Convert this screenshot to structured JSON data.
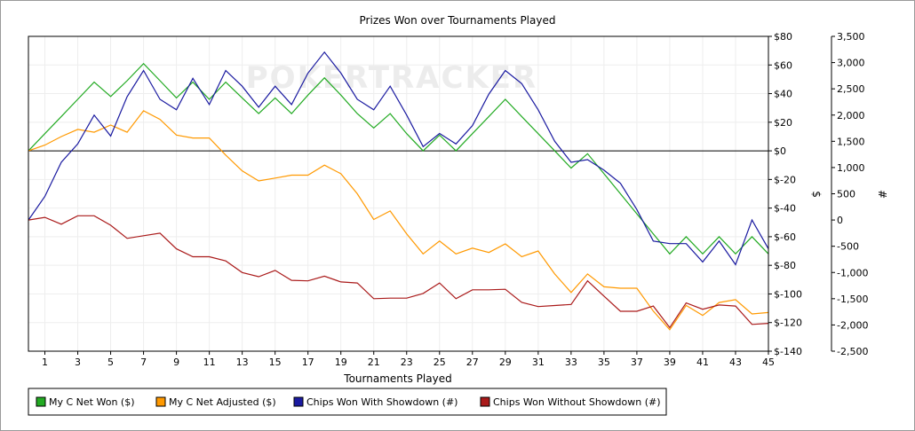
{
  "chart_data": {
    "type": "line",
    "title": "Prizes Won over Tournaments Played",
    "xlabel": "Tournaments Played",
    "ylabel_left": "$",
    "ylabel_right": "#",
    "watermark": "POKERTRACKER",
    "x": [
      0,
      1,
      2,
      3,
      4,
      5,
      6,
      7,
      8,
      9,
      10,
      11,
      12,
      13,
      14,
      15,
      16,
      17,
      18,
      19,
      20,
      21,
      22,
      23,
      24,
      25,
      26,
      27,
      28,
      29,
      30,
      31,
      32,
      33,
      34,
      35,
      36,
      37,
      38,
      39,
      40,
      41,
      42,
      43,
      44,
      45
    ],
    "x_ticks": [
      "1",
      "3",
      "5",
      "7",
      "9",
      "11",
      "13",
      "15",
      "17",
      "19",
      "21",
      "23",
      "25",
      "27",
      "29",
      "31",
      "33",
      "35",
      "37",
      "39",
      "41",
      "43",
      "45"
    ],
    "ylim_left": [
      -140,
      80
    ],
    "yticks_left": [
      "$80",
      "$60",
      "$40",
      "$20",
      "$0",
      "$-20",
      "$-40",
      "$-60",
      "$-80",
      "$-100",
      "$-120",
      "$-140"
    ],
    "ylim_right": [
      -2500,
      3500
    ],
    "yticks_right": [
      "3,500",
      "3,000",
      "2,500",
      "2,000",
      "1,500",
      "1,000",
      "500",
      "0",
      "-500",
      "-1,000",
      "-1,500",
      "-2,000",
      "-2,500"
    ],
    "grid": true,
    "legend_position": "bottom",
    "series": [
      {
        "name": "My C Net Won ($)",
        "axis": "left",
        "color": "#22aa22",
        "values": [
          0,
          12,
          24,
          36,
          48,
          38,
          49,
          61,
          49,
          37,
          48,
          36,
          48,
          37,
          26,
          37,
          26,
          39,
          51,
          39,
          26,
          16,
          26,
          12,
          0,
          11,
          0,
          12,
          24,
          36,
          24,
          12,
          0,
          -12,
          -2,
          -16,
          -30,
          -44,
          -58,
          -72,
          -60,
          -72,
          -60,
          -72,
          -60,
          -72
        ]
      },
      {
        "name": "My C Net Adjusted ($)",
        "axis": "left",
        "color": "#ff9900",
        "values": [
          0,
          4,
          10,
          15,
          13,
          18,
          13,
          28,
          22,
          11,
          9,
          9,
          -3,
          -14,
          -21,
          -19,
          -17,
          -17,
          -10,
          -16,
          -30,
          -48,
          -42,
          -58,
          -72,
          -63,
          -72,
          -68,
          -71,
          -65,
          -74,
          -70,
          -86,
          -99,
          -86,
          -95,
          -96,
          -96,
          -112,
          -125,
          -108,
          -115,
          -106,
          -104,
          -114,
          -113
        ]
      },
      {
        "name": "Chips Won With Showdown (#)",
        "axis": "right",
        "color": "#1a1aa0",
        "values": [
          0,
          450,
          1100,
          1450,
          2000,
          1600,
          2350,
          2850,
          2300,
          2100,
          2700,
          2200,
          2850,
          2550,
          2150,
          2550,
          2200,
          2800,
          3200,
          2800,
          2300,
          2100,
          2550,
          2000,
          1400,
          1650,
          1450,
          1800,
          2400,
          2850,
          2600,
          2100,
          1500,
          1100,
          1150,
          950,
          700,
          200,
          -400,
          -450,
          -450,
          -800,
          -400,
          -850,
          0,
          -550
        ]
      },
      {
        "name": "Chips Won Without Showdown (#)",
        "axis": "right",
        "color": "#aa1a1a",
        "values": [
          0,
          50,
          -80,
          80,
          80,
          -100,
          -350,
          -300,
          -250,
          -550,
          -700,
          -700,
          -780,
          -1000,
          -1080,
          -960,
          -1150,
          -1160,
          -1070,
          -1180,
          -1200,
          -1500,
          -1490,
          -1490,
          -1400,
          -1200,
          -1500,
          -1330,
          -1330,
          -1320,
          -1570,
          -1650,
          -1630,
          -1610,
          -1160,
          -1450,
          -1740,
          -1740,
          -1640,
          -2050,
          -1580,
          -1700,
          -1620,
          -1640,
          -1990,
          -1970
        ]
      }
    ]
  }
}
